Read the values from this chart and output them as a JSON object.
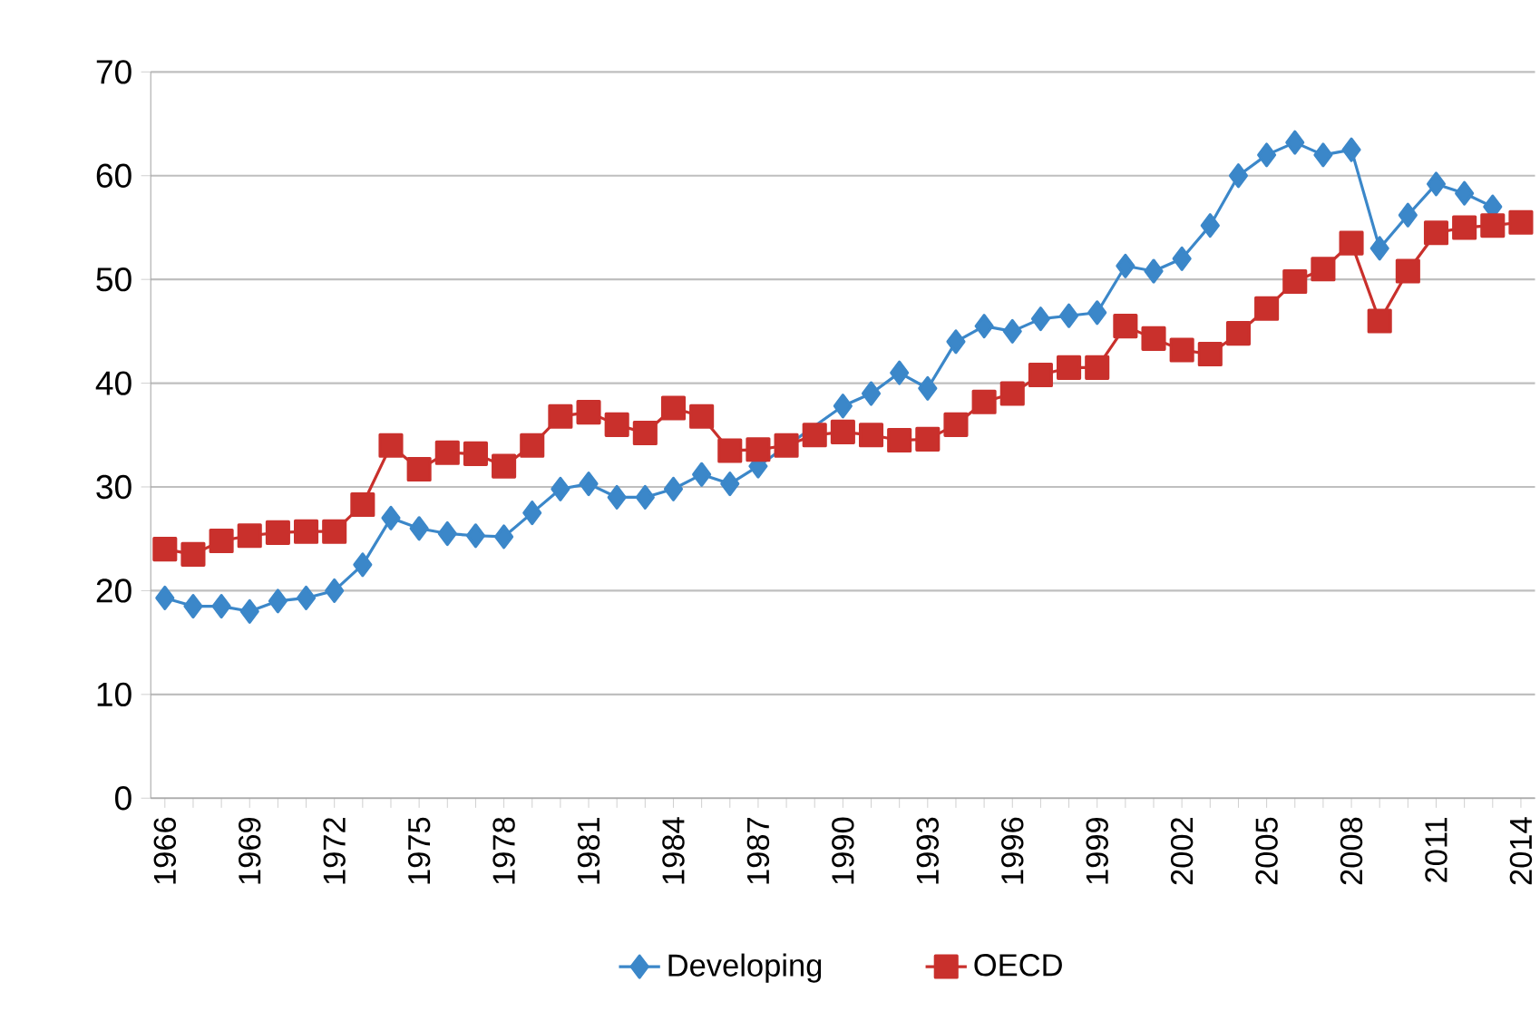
{
  "chart_data": {
    "type": "line",
    "categories": [
      "1966",
      null,
      null,
      "1969",
      null,
      null,
      "1972",
      null,
      null,
      "1975",
      null,
      null,
      "1978",
      null,
      null,
      "1981",
      null,
      null,
      "1984",
      null,
      null,
      "1987",
      null,
      null,
      "1990",
      null,
      null,
      "1993",
      null,
      null,
      "1996",
      null,
      null,
      "1999",
      null,
      null,
      "2002",
      null,
      null,
      "2005",
      null,
      null,
      "2008",
      null,
      null,
      "2011",
      null,
      null,
      "2014"
    ],
    "series": [
      {
        "name": "Developing",
        "color": "#3b87c9",
        "marker": "diamond",
        "values": [
          19.3,
          18.5,
          18.5,
          18,
          19,
          19.3,
          20,
          22.5,
          27,
          26,
          25.5,
          25.3,
          25.2,
          27.5,
          29.8,
          30.3,
          29,
          29,
          29.8,
          31.2,
          30.3,
          32,
          null,
          null,
          37.8,
          39,
          41,
          39.5,
          44,
          45.5,
          45,
          46.2,
          46.5,
          46.8,
          51.3,
          50.8,
          52,
          55.2,
          60,
          62,
          63.2,
          62,
          62.5,
          53,
          56.2,
          59.2,
          58.3,
          57,
          null
        ]
      },
      {
        "name": "OECD",
        "color": "#c9302c",
        "marker": "square",
        "values": [
          24,
          23.5,
          24.8,
          25.3,
          25.6,
          25.7,
          25.7,
          28.3,
          34,
          31.7,
          33.3,
          33.2,
          32,
          34,
          36.8,
          37.2,
          36,
          35.2,
          37.6,
          36.8,
          33.5,
          33.6,
          34,
          35,
          35.3,
          35,
          34.5,
          34.6,
          36,
          38.2,
          39,
          40.8,
          41.5,
          41.5,
          45.5,
          44.3,
          43.2,
          42.8,
          44.8,
          47.2,
          49.8,
          51,
          53.5,
          46,
          50.8,
          54.5,
          55,
          55.2,
          55.5
        ]
      }
    ],
    "ylim": [
      0,
      70
    ],
    "yticks": [
      0,
      10,
      20,
      30,
      40,
      50,
      60,
      70
    ],
    "grid": "y",
    "legend": "bottom"
  }
}
